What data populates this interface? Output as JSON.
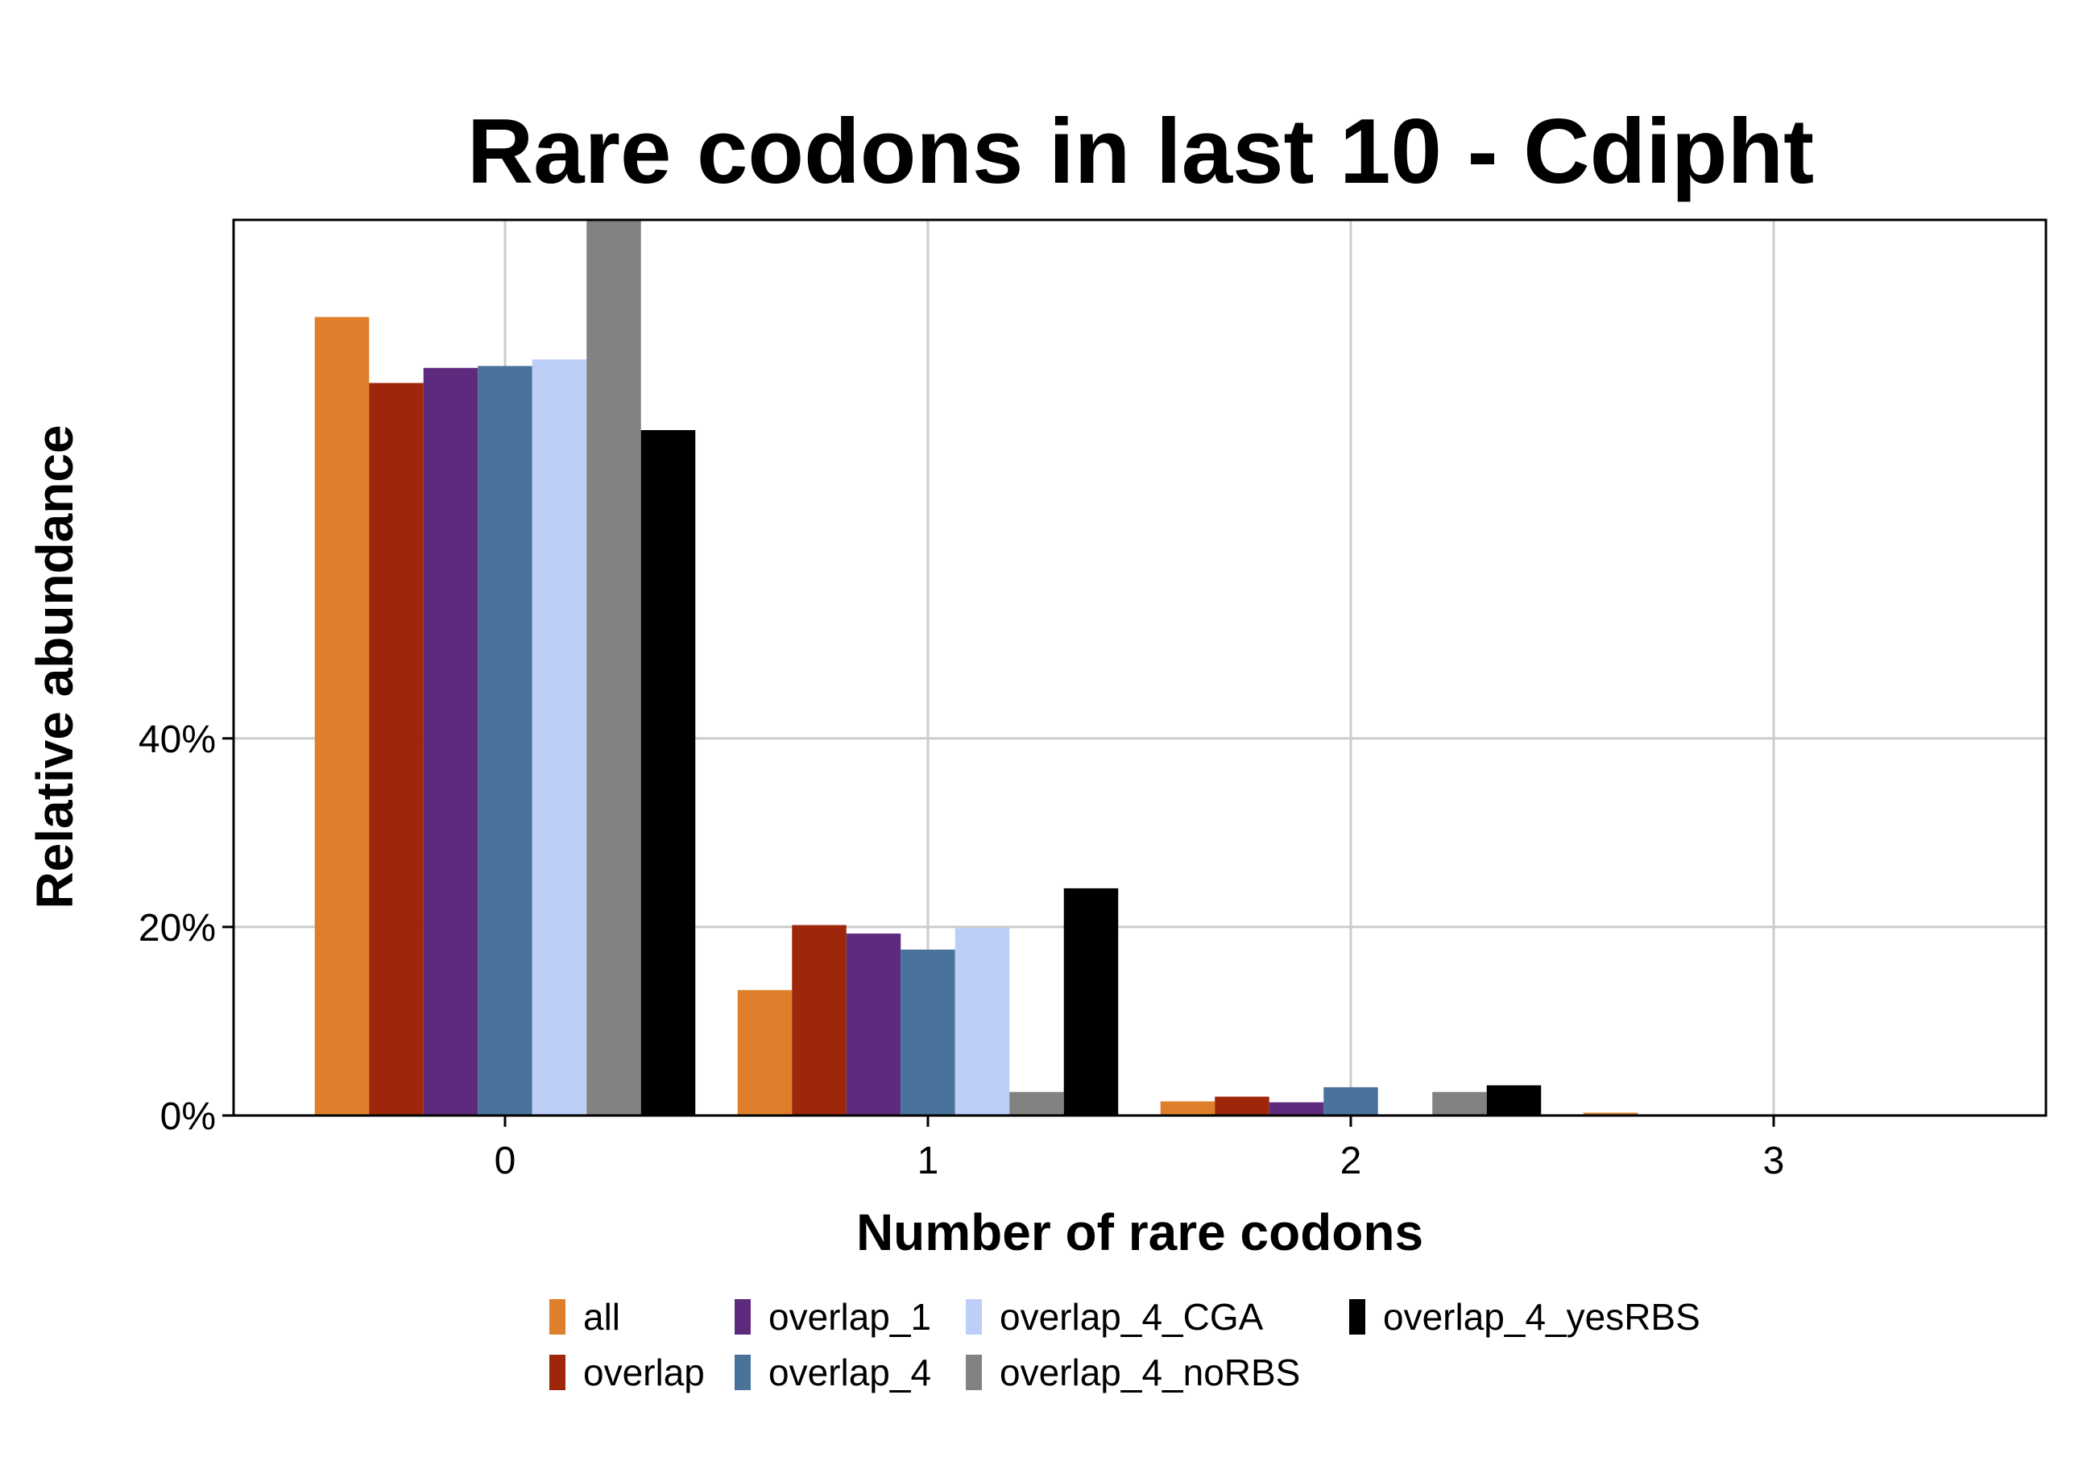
{
  "chart_data": {
    "type": "bar",
    "title": "Rare codons in last 10 - Cdipht",
    "xlabel": "Number of rare codons",
    "ylabel": "Relative abundance",
    "categories": [
      "0",
      "1",
      "2",
      "3"
    ],
    "ylim": [
      0,
      0.95
    ],
    "yticks": [
      0,
      0.2,
      0.4
    ],
    "ytick_labels": [
      "0%",
      "20%",
      "40%"
    ],
    "grid": true,
    "legend_position": "bottom",
    "series": [
      {
        "name": "all",
        "color": "#E07F2B",
        "values": [
          0.847,
          0.133,
          0.015,
          0.003
        ]
      },
      {
        "name": "overlap",
        "color": "#9E270B",
        "values": [
          0.777,
          0.202,
          0.02,
          0.0
        ]
      },
      {
        "name": "overlap_1",
        "color": "#5E2A7E",
        "values": [
          0.793,
          0.193,
          0.014,
          0.0
        ]
      },
      {
        "name": "overlap_4",
        "color": "#4A739B",
        "values": [
          0.795,
          0.176,
          0.03,
          0.0
        ]
      },
      {
        "name": "overlap_4_CGA",
        "color": "#BDCFF7",
        "values": [
          0.802,
          0.199,
          0.0,
          0.0
        ]
      },
      {
        "name": "overlap_4_noRBS",
        "color": "#828282",
        "values": [
          0.95,
          0.025,
          0.025,
          0.0
        ]
      },
      {
        "name": "overlap_4_yesRBS",
        "color": "#000000",
        "values": [
          0.727,
          0.241,
          0.032,
          0.0
        ]
      }
    ]
  }
}
